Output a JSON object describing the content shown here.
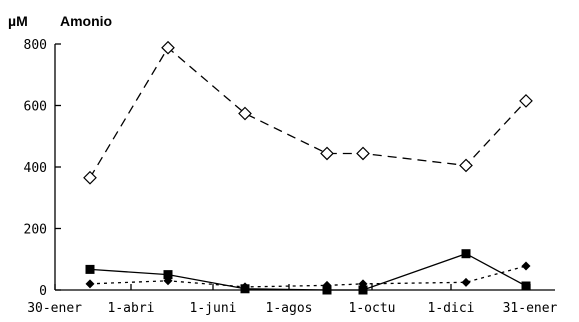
{
  "chart_data": {
    "type": "line",
    "title": "Amonio",
    "ylabel": "µM",
    "ylim": [
      0,
      800
    ],
    "yticks": [
      0,
      200,
      400,
      600,
      800
    ],
    "x_tick_labels": [
      "30-ener",
      "1-abri",
      "1-juni",
      "1-agos",
      "1-octu",
      "1-dici",
      "31-ener"
    ],
    "x": [
      "1-mar",
      "15-abr",
      "15-jun",
      "15-ago",
      "15-oct",
      "15-dic",
      "31-ener"
    ],
    "grid": false,
    "legend": "none",
    "series": [
      {
        "marker": "open-diamond",
        "line_style": "long-dash",
        "color": "#000000",
        "values": [
          365,
          788,
          574,
          444,
          444,
          405,
          615
        ]
      },
      {
        "marker": "filled-square",
        "line_style": "solid",
        "color": "#000000",
        "values": [
          67,
          50,
          4,
          0,
          0,
          118,
          13
        ]
      },
      {
        "marker": "filled-diamond",
        "line_style": "dotted",
        "color": "#000000",
        "values": [
          20,
          30,
          10,
          15,
          20,
          25,
          78
        ]
      }
    ]
  }
}
